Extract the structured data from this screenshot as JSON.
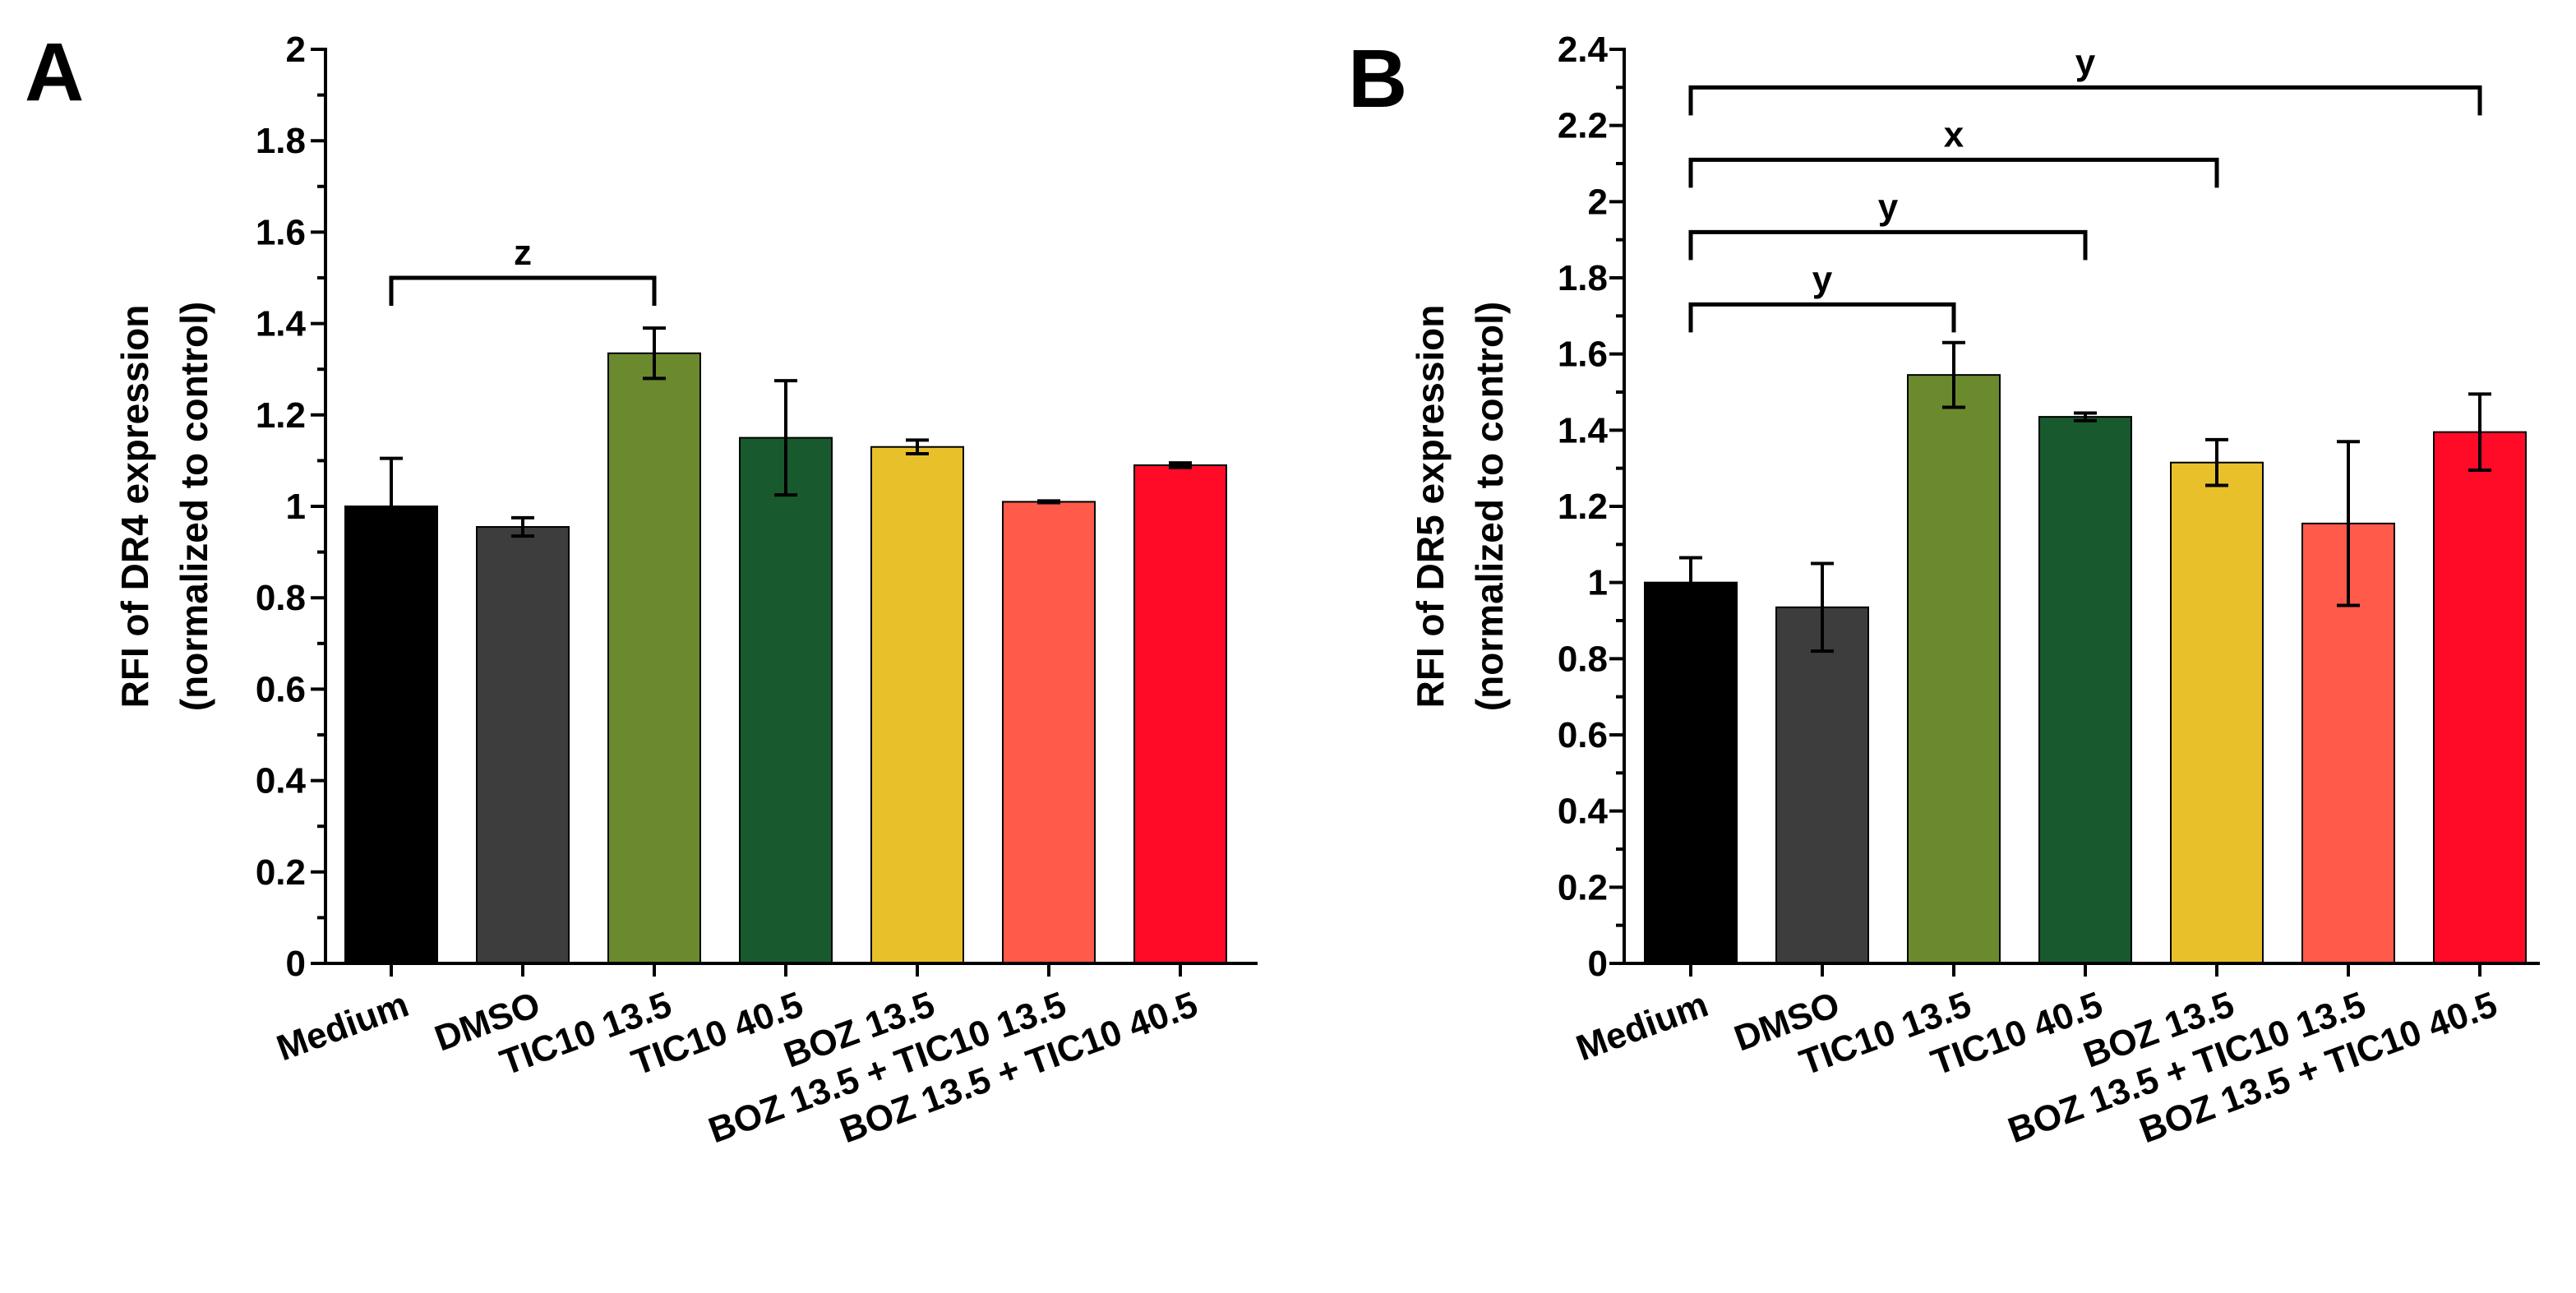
{
  "chart_data": [
    {
      "type": "bar",
      "panel": "A",
      "ylabel_line1": "RFI of DR4 expression",
      "ylabel_line2": "(normalized to control)",
      "ylim": [
        0,
        2
      ],
      "yticks": [
        "0",
        "0.2",
        "0.4",
        "0.6",
        "0.8",
        "1",
        "1.2",
        "1.4",
        "1.6",
        "1.8",
        "2"
      ],
      "categories": [
        "Medium",
        "DMSO",
        "TIC10 13.5",
        "TIC10 40.5",
        "BOZ 13.5",
        "BOZ 13.5 + TIC10 13.5",
        "BOZ 13.5 + TIC10 40.5"
      ],
      "values": [
        1.0,
        0.955,
        1.335,
        1.15,
        1.13,
        1.01,
        1.09
      ],
      "errors": [
        0.105,
        0.02,
        0.055,
        0.125,
        0.015,
        0.002,
        0.005
      ],
      "colors": [
        "#000000",
        "#3d3d3d",
        "#6b8a2e",
        "#185a2e",
        "#e8c02a",
        "#ff5a4a",
        "#ff0a27"
      ],
      "significance": [
        {
          "from": 0,
          "to": 2,
          "label": "z",
          "level": 1.5
        }
      ]
    },
    {
      "type": "bar",
      "panel": "B",
      "ylabel_line1": "RFI of DR5 expression",
      "ylabel_line2": "(normalized to control)",
      "ylim": [
        0,
        2.4
      ],
      "yticks": [
        "0",
        "0.2",
        "0.4",
        "0.6",
        "0.8",
        "1",
        "1.2",
        "1.4",
        "1.6",
        "1.8",
        "2",
        "2.2",
        "2.4"
      ],
      "categories": [
        "Medium",
        "DMSO",
        "TIC10 13.5",
        "TIC10 40.5",
        "BOZ 13.5",
        "BOZ 13.5 + TIC10 13.5",
        "BOZ 13.5 + TIC10 40.5"
      ],
      "values": [
        1.0,
        0.935,
        1.545,
        1.435,
        1.315,
        1.155,
        1.395
      ],
      "errors": [
        0.065,
        0.115,
        0.085,
        0.01,
        0.06,
        0.215,
        0.1
      ],
      "colors": [
        "#000000",
        "#3d3d3d",
        "#6b8a2e",
        "#185a2e",
        "#e8c02a",
        "#ff5a4a",
        "#ff0a27"
      ],
      "significance": [
        {
          "from": 0,
          "to": 2,
          "label": "y",
          "level": 1.73
        },
        {
          "from": 0,
          "to": 3,
          "label": "y",
          "level": 1.92
        },
        {
          "from": 0,
          "to": 4,
          "label": "x",
          "level": 2.11
        },
        {
          "from": 0,
          "to": 6,
          "label": "y",
          "level": 2.3
        }
      ]
    }
  ]
}
